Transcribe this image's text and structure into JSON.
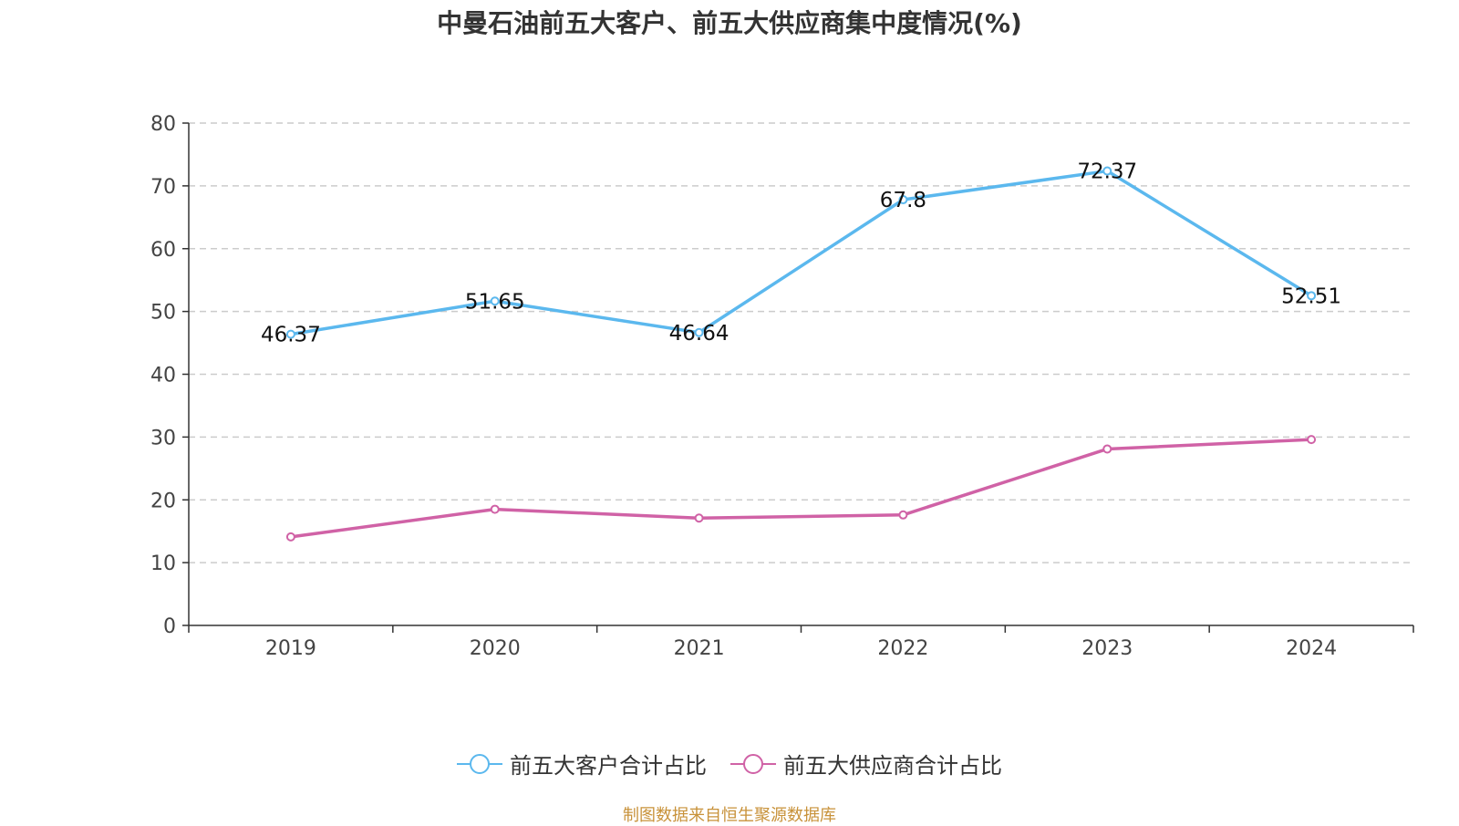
{
  "title": "中曼石油前五大客户、前五大供应商集中度情况(%)",
  "source_note": "制图数据来自恒生聚源数据库",
  "colors": {
    "customers": "#5bb8ee",
    "suppliers": "#d062a6",
    "grid": "#cccccc",
    "axis": "#333333"
  },
  "chart_data": {
    "type": "line",
    "title": "中曼石油前五大客户、前五大供应商集中度情况(%)",
    "categories": [
      "2019",
      "2020",
      "2021",
      "2022",
      "2023",
      "2024"
    ],
    "ylim": [
      0,
      80
    ],
    "yticks": [
      0,
      10,
      20,
      30,
      40,
      50,
      60,
      70,
      80
    ],
    "grid": true,
    "legend_position": "bottom-center",
    "series": [
      {
        "name": "前五大客户合计占比",
        "color": "#5bb8ee",
        "values": [
          46.37,
          51.65,
          46.64,
          67.8,
          72.37,
          52.51
        ],
        "labels": [
          "46.37",
          "51.65",
          "46.64",
          "67.8",
          "72.37",
          "52.51"
        ]
      },
      {
        "name": "前五大供应商合计占比",
        "color": "#d062a6",
        "values": [
          14.1,
          18.5,
          17.1,
          17.6,
          28.1,
          29.6
        ]
      }
    ]
  }
}
